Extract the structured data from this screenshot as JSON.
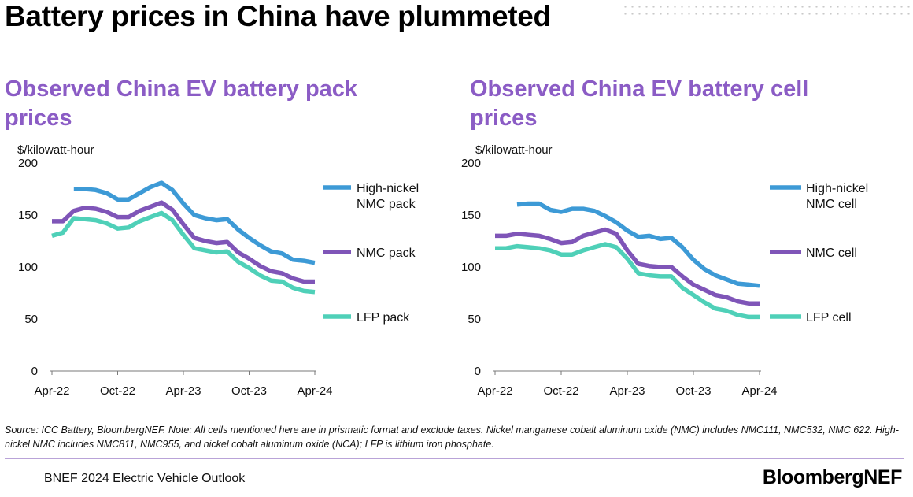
{
  "page": {
    "title": "Battery prices in China have plummeted",
    "source": "Source: ICC Battery, BloombergNEF. Note: All cells mentioned here are in prismatic format and exclude taxes. Nickel manganese cobalt aluminum oxide (NMC) includes NMC111, NMC532, NMC 622. High-nickel NMC includes NMC811, NMC955, and nickel cobalt aluminum oxide (NCA); LFP is lithium iron phosphate.",
    "footer": "BNEF 2024 Electric Vehicle Outlook",
    "logo": "BloombergNEF"
  },
  "colors": {
    "high_nickel": "#3d9ad6",
    "nmc": "#7f55b8",
    "lfp": "#4fd0b8",
    "title_accent": "#8b5cc5"
  },
  "chart_data": [
    {
      "type": "line",
      "title": "Observed China EV battery pack prices",
      "ylabel": "$/kilowatt-hour",
      "ylim": [
        0,
        200
      ],
      "yticks": [
        "0",
        "50",
        "100",
        "150",
        "200"
      ],
      "x": [
        "2022-04",
        "2022-05",
        "2022-06",
        "2022-07",
        "2022-08",
        "2022-09",
        "2022-10",
        "2022-11",
        "2022-12",
        "2023-01",
        "2023-02",
        "2023-03",
        "2023-04",
        "2023-05",
        "2023-06",
        "2023-07",
        "2023-08",
        "2023-09",
        "2023-10",
        "2023-11",
        "2023-12",
        "2024-01",
        "2024-02",
        "2024-03",
        "2024-04"
      ],
      "xtick_labels": [
        "Apr-22",
        "Oct-22",
        "Apr-23",
        "Oct-23",
        "Apr-24"
      ],
      "legend": "right",
      "series": [
        {
          "name": "High-nickel NMC pack",
          "color": "#3d9ad6",
          "values": [
            null,
            null,
            175,
            175,
            174,
            171,
            165,
            165,
            171,
            177,
            181,
            174,
            161,
            150,
            147,
            145,
            146,
            136,
            128,
            121,
            115,
            113,
            107,
            106,
            104
          ]
        },
        {
          "name": "NMC pack",
          "color": "#7f55b8",
          "values": [
            144,
            144,
            154,
            157,
            156,
            153,
            148,
            148,
            154,
            158,
            162,
            155,
            141,
            128,
            125,
            123,
            124,
            114,
            108,
            101,
            96,
            94,
            89,
            86,
            86
          ]
        },
        {
          "name": "LFP pack",
          "color": "#4fd0b8",
          "values": [
            130,
            133,
            147,
            146,
            145,
            142,
            137,
            138,
            144,
            148,
            152,
            145,
            131,
            118,
            116,
            114,
            115,
            105,
            99,
            92,
            87,
            86,
            80,
            77,
            76
          ]
        }
      ]
    },
    {
      "type": "line",
      "title": "Observed China EV battery cell prices",
      "ylabel": "$/kilowatt-hour",
      "ylim": [
        0,
        200
      ],
      "yticks": [
        "0",
        "50",
        "100",
        "150",
        "200"
      ],
      "x": [
        "2022-04",
        "2022-05",
        "2022-06",
        "2022-07",
        "2022-08",
        "2022-09",
        "2022-10",
        "2022-11",
        "2022-12",
        "2023-01",
        "2023-02",
        "2023-03",
        "2023-04",
        "2023-05",
        "2023-06",
        "2023-07",
        "2023-08",
        "2023-09",
        "2023-10",
        "2023-11",
        "2023-12",
        "2024-01",
        "2024-02",
        "2024-03",
        "2024-04"
      ],
      "xtick_labels": [
        "Apr-22",
        "Oct-22",
        "Apr-23",
        "Oct-23",
        "Apr-24"
      ],
      "legend": "right",
      "series": [
        {
          "name": "High-nickel NMC cell",
          "color": "#3d9ad6",
          "values": [
            null,
            null,
            160,
            161,
            161,
            155,
            153,
            156,
            156,
            154,
            149,
            143,
            135,
            129,
            130,
            127,
            128,
            119,
            107,
            98,
            92,
            88,
            84,
            83,
            82
          ]
        },
        {
          "name": "NMC cell",
          "color": "#7f55b8",
          "values": [
            130,
            130,
            132,
            131,
            130,
            127,
            123,
            124,
            130,
            133,
            136,
            132,
            116,
            103,
            101,
            100,
            100,
            91,
            83,
            78,
            73,
            71,
            67,
            65,
            65
          ]
        },
        {
          "name": "LFP cell",
          "color": "#4fd0b8",
          "values": [
            118,
            118,
            120,
            119,
            118,
            116,
            112,
            112,
            116,
            119,
            122,
            119,
            108,
            94,
            92,
            91,
            91,
            80,
            73,
            66,
            60,
            58,
            54,
            52,
            52
          ]
        }
      ]
    }
  ]
}
